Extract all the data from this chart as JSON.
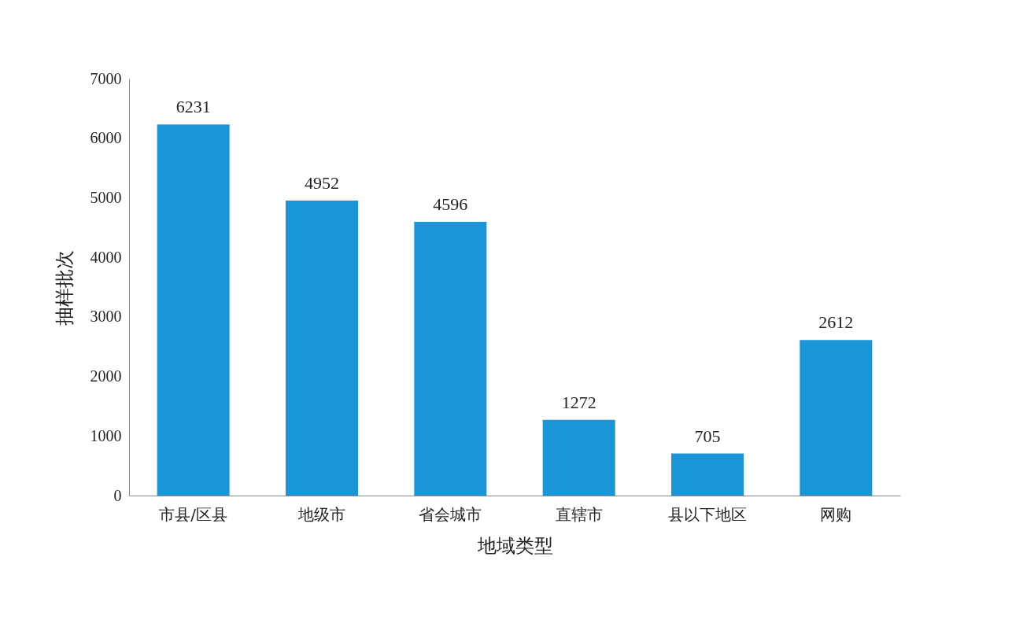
{
  "chart_data": {
    "type": "bar",
    "xlabel": "地域类型",
    "ylabel": "抽样批次",
    "categories": [
      "市县/区县",
      "地级市",
      "省会城市",
      "直辖市",
      "县以下地区",
      "网购"
    ],
    "values": [
      6231,
      4952,
      4596,
      1272,
      705,
      2612
    ],
    "color": "#1a96d8",
    "ylim": [
      0,
      7000
    ],
    "yticks": [
      0,
      1000,
      2000,
      3000,
      4000,
      5000,
      6000,
      7000
    ],
    "grid": false,
    "data_labels": true
  }
}
